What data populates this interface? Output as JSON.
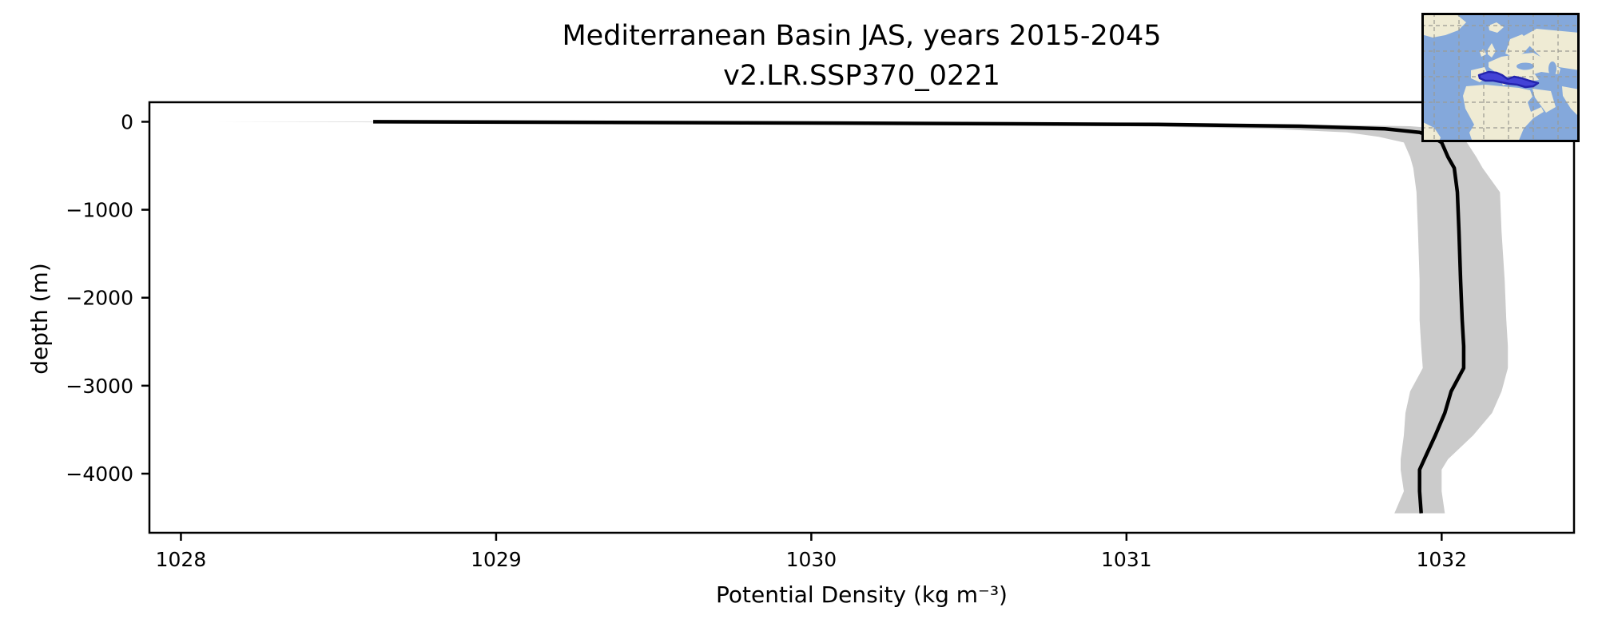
{
  "title": {
    "line1": "Mediterranean Basin JAS, years 2015-2045",
    "line2": "v2.LR.SSP370_0221"
  },
  "colors": {
    "band": "#cbcbcb",
    "line": "#000000",
    "ocean": "#84a8db",
    "land": "#efebd4",
    "med": "#4343d6",
    "mededge": "#2424ae",
    "mapgrid": "#9a9a92"
  },
  "inset": {
    "name": "mediterranean-basin-locator-map"
  },
  "chart_data": {
    "type": "line",
    "title": "Mediterranean Basin JAS, years 2015-2045 v2.LR.SSP370_0221",
    "xlabel": "Potential Density (kg m⁻³)",
    "ylabel": "depth (m)",
    "xlim": [
      1027.9,
      1032.42
    ],
    "ylim": [
      -4672,
      222
    ],
    "grid": false,
    "legend": "none",
    "x_tick_values": [
      1028,
      1029,
      1030,
      1031,
      1032
    ],
    "x_tick_labels": [
      "1028",
      "1029",
      "1030",
      "1031",
      "1032"
    ],
    "y_tick_values": [
      0,
      -1000,
      -2000,
      -3000,
      -4000
    ],
    "y_tick_labels": [
      "0",
      "−1000",
      "−2000",
      "−3000",
      "−4000"
    ],
    "depths": [
      0,
      -15,
      -30,
      -50,
      -80,
      -120,
      -170,
      -236,
      -400,
      -526,
      -800,
      -1250,
      -1800,
      -2250,
      -2550,
      -2800,
      -3065,
      -3310,
      -3564,
      -3837,
      -3955,
      -4200,
      -4450
    ],
    "series": [
      {
        "name": "mean potential density",
        "values": [
          1028.61,
          1030.1,
          1031.1,
          1031.55,
          1031.82,
          1031.93,
          1031.97,
          1032.0,
          1032.02,
          1032.04,
          1032.05,
          1032.055,
          1032.06,
          1032.065,
          1032.07,
          1032.07,
          1032.03,
          1032.01,
          1031.98,
          1031.945,
          1031.93,
          1031.93,
          1031.935
        ]
      },
      {
        "name": "spread lower bound",
        "values": [
          1028.11,
          1029.4,
          1030.4,
          1031.0,
          1031.45,
          1031.7,
          1031.8,
          1031.88,
          1031.9,
          1031.91,
          1031.92,
          1031.925,
          1031.93,
          1031.93,
          1031.935,
          1031.94,
          1031.9,
          1031.885,
          1031.88,
          1031.87,
          1031.87,
          1031.88,
          1031.85
        ]
      },
      {
        "name": "spread upper bound",
        "values": [
          1028.85,
          1030.6,
          1031.55,
          1031.9,
          1032.0,
          1032.04,
          1032.06,
          1032.08,
          1032.11,
          1032.13,
          1032.185,
          1032.19,
          1032.2,
          1032.205,
          1032.21,
          1032.21,
          1032.19,
          1032.16,
          1032.1,
          1032.02,
          1032.0,
          1032.0,
          1032.01
        ]
      }
    ]
  }
}
